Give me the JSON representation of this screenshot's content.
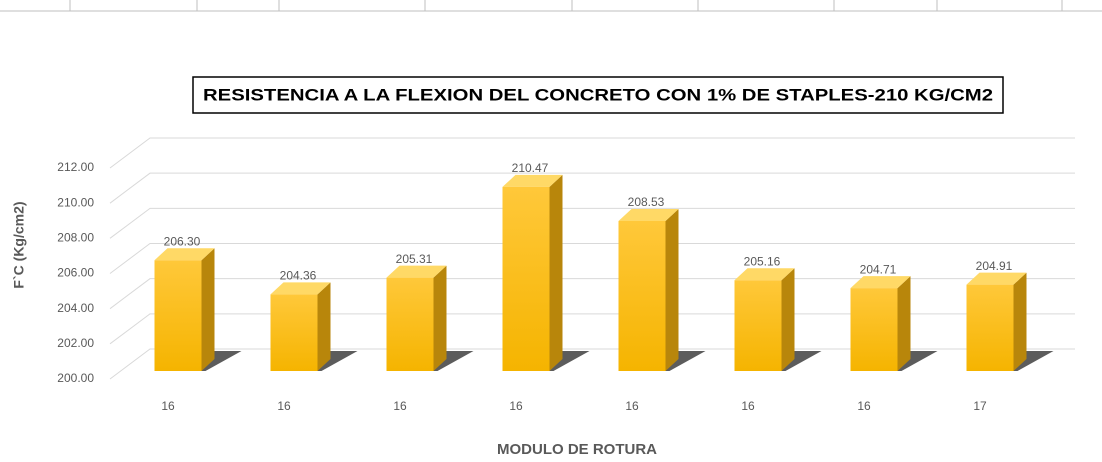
{
  "chart_data": {
    "type": "bar3d",
    "title": "RESISTENCIA A LA FLEXION DEL CONCRETO CON 1% DE STAPLES-210 KG/CM2",
    "x_label": "MODULO DE ROTURA",
    "y_label": "F`C (Kg/cm2)",
    "categories": [
      "16",
      "16",
      "16",
      "16",
      "16",
      "16",
      "16",
      "17"
    ],
    "values": [
      206.3,
      204.36,
      205.31,
      210.47,
      208.53,
      205.16,
      204.71,
      204.91
    ],
    "value_labels": [
      "206.30",
      "204.36",
      "205.31",
      "210.47",
      "208.53",
      "205.16",
      "204.71",
      "204.91"
    ],
    "color": "#ffc000",
    "ylim": [
      200,
      212
    ],
    "yticks": [
      {
        "value": 200,
        "label": "200.00"
      },
      {
        "value": 202,
        "label": "202.00"
      },
      {
        "value": 204,
        "label": "204.00"
      },
      {
        "value": 206,
        "label": "206.00"
      },
      {
        "value": 208,
        "label": "208.00"
      },
      {
        "value": 210,
        "label": "210.00"
      },
      {
        "value": 212,
        "label": "212.00"
      }
    ],
    "grid": true
  }
}
